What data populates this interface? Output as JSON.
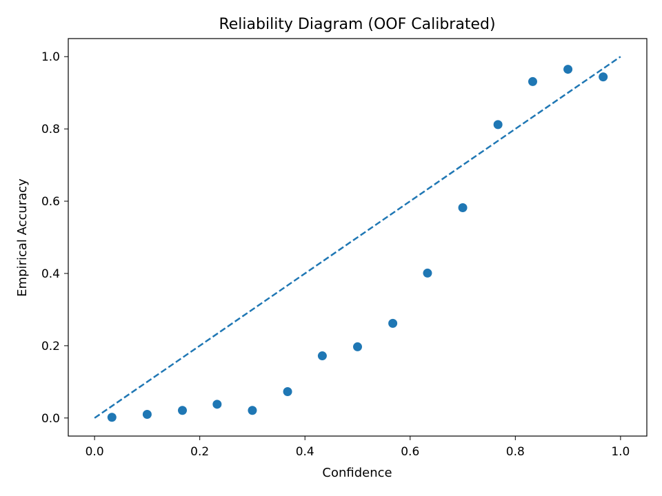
{
  "chart_data": {
    "type": "scatter",
    "title": "Reliability Diagram (OOF Calibrated)",
    "xlabel": "Confidence",
    "ylabel": "Empirical Accuracy",
    "xlim": [
      -0.05,
      1.05
    ],
    "ylim": [
      -0.05,
      1.05
    ],
    "xticks": [
      "0.0",
      "0.2",
      "0.4",
      "0.6",
      "0.8",
      "1.0"
    ],
    "yticks": [
      "0.0",
      "0.2",
      "0.4",
      "0.6",
      "0.8",
      "1.0"
    ],
    "grid": false,
    "colors": {
      "points": "#1f77b4",
      "reference": "#1f77b4"
    },
    "reference_line": {
      "style": "dashed",
      "x": [
        0,
        1
      ],
      "y": [
        0,
        1
      ]
    },
    "points": [
      {
        "x": 0.033,
        "y": 0.002
      },
      {
        "x": 0.1,
        "y": 0.01
      },
      {
        "x": 0.167,
        "y": 0.021
      },
      {
        "x": 0.233,
        "y": 0.038
      },
      {
        "x": 0.3,
        "y": 0.021
      },
      {
        "x": 0.367,
        "y": 0.073
      },
      {
        "x": 0.433,
        "y": 0.172
      },
      {
        "x": 0.5,
        "y": 0.197
      },
      {
        "x": 0.567,
        "y": 0.262
      },
      {
        "x": 0.633,
        "y": 0.401
      },
      {
        "x": 0.7,
        "y": 0.582
      },
      {
        "x": 0.767,
        "y": 0.812
      },
      {
        "x": 0.833,
        "y": 0.931
      },
      {
        "x": 0.9,
        "y": 0.965
      },
      {
        "x": 0.967,
        "y": 0.944
      }
    ]
  }
}
